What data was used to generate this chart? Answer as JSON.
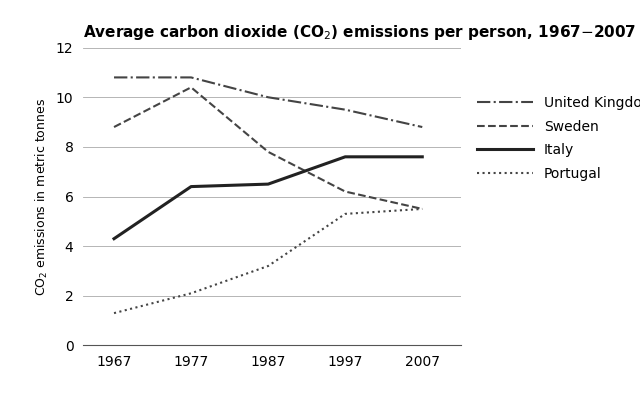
{
  "title": "Average carbon dioxide (CO$_2$) emissions per person, 1967–2007",
  "ylabel": "CO$_2$ emissions in metric tonnes",
  "xlabel": "",
  "years": [
    1967,
    1977,
    1987,
    1997,
    2007
  ],
  "series": {
    "United Kingdom": {
      "values": [
        10.8,
        10.8,
        10.0,
        9.5,
        8.8
      ],
      "linestyle": "-.",
      "color": "#444444",
      "linewidth": 1.5
    },
    "Sweden": {
      "values": [
        8.8,
        10.4,
        7.8,
        6.2,
        5.5
      ],
      "linestyle": "--",
      "color": "#444444",
      "linewidth": 1.5
    },
    "Italy": {
      "values": [
        4.3,
        6.4,
        6.5,
        7.6,
        7.6
      ],
      "linestyle": "-",
      "color": "#222222",
      "linewidth": 2.2
    },
    "Portugal": {
      "values": [
        1.3,
        2.1,
        3.2,
        5.3,
        5.5
      ],
      "linestyle": ":",
      "color": "#444444",
      "linewidth": 1.5
    }
  },
  "ylim": [
    0,
    12
  ],
  "yticks": [
    0,
    2,
    4,
    6,
    8,
    10,
    12
  ],
  "xticks": [
    1967,
    1977,
    1987,
    1997,
    2007
  ],
  "xlim_left": 1963,
  "xlim_right": 2012,
  "background_color": "#ffffff",
  "title_fontsize": 11,
  "axis_label_fontsize": 9,
  "tick_fontsize": 10,
  "legend_fontsize": 10
}
